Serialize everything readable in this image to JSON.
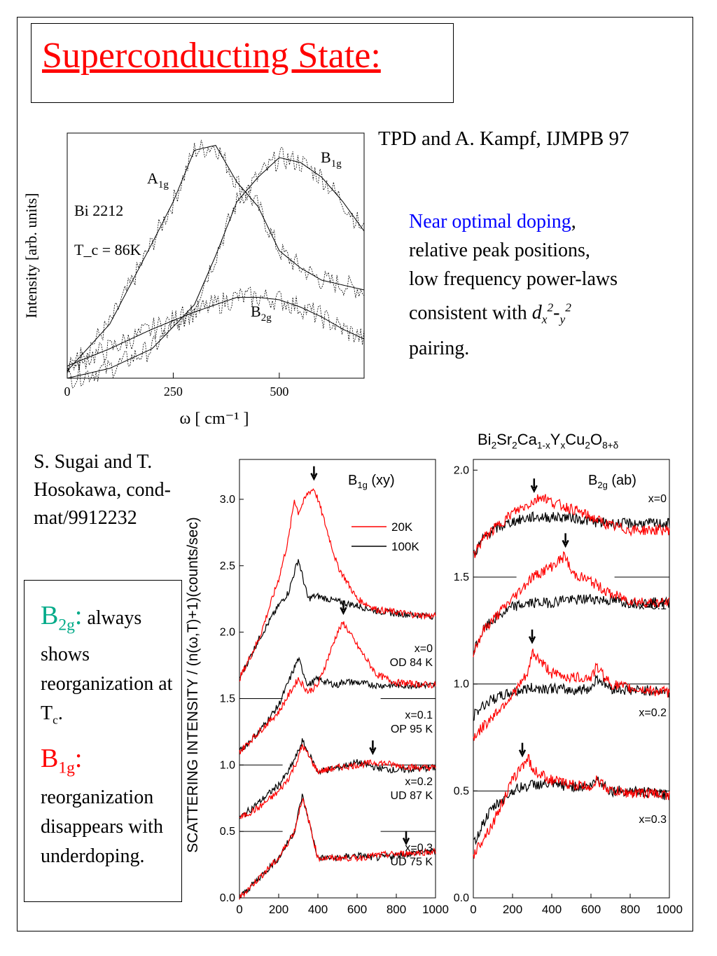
{
  "title": "Superconducting State:",
  "citation_top": "TPD and A. Kampf, IJMPB 97",
  "description": {
    "highlight": "Near optimal doping",
    "line1_rest": ",",
    "line2": "relative peak positions,",
    "line3": "low frequency power-laws",
    "line4_prefix": "consistent with ",
    "line5": "pairing."
  },
  "citation_bottom": "S. Sugai and T. Hosokawa, cond-mat/9912232",
  "notes": {
    "b2g_label": "B",
    "b2g_sub": "2g",
    "b2g_colon": ":",
    "b2g_text": " always shows reorganization at T",
    "b2g_text_sub": "c",
    "b2g_text_end": ".",
    "b1g_label": "B",
    "b1g_sub": "1g",
    "b1g_colon": ":",
    "b1g_text": "reorganization disappears with underdoping."
  },
  "colors": {
    "title": "#ff0000",
    "highlight": "#0000ff",
    "b2g": "#00aa88",
    "b1g": "#ff0000",
    "red_curve": "#ff0000",
    "black_curve": "#000000"
  },
  "chart_data": [
    {
      "type": "line",
      "ylabel": "Intensity [arb. units]",
      "xlabel": "ω [ cm⁻¹ ]",
      "xlim": [
        0,
        700
      ],
      "xticks": [
        "0",
        "250",
        "500"
      ],
      "annotations": [
        "Bi 2212",
        "T_c = 86K"
      ],
      "series": [
        {
          "name": "A1g",
          "x": [
            0,
            100,
            200,
            250,
            300,
            350,
            400,
            450,
            500,
            550,
            600,
            650,
            700
          ],
          "y": [
            0.03,
            0.22,
            0.55,
            0.72,
            0.93,
            0.95,
            0.8,
            0.7,
            0.52,
            0.45,
            0.4,
            0.38,
            0.36
          ]
        },
        {
          "name": "B1g",
          "x": [
            0,
            100,
            200,
            300,
            350,
            400,
            450,
            500,
            550,
            600,
            650,
            700
          ],
          "y": [
            0.0,
            0.04,
            0.12,
            0.3,
            0.5,
            0.72,
            0.82,
            0.9,
            0.88,
            0.82,
            0.72,
            0.6
          ]
        },
        {
          "name": "B2g",
          "x": [
            0,
            100,
            200,
            300,
            400,
            450,
            500,
            550,
            600,
            650,
            700
          ],
          "y": [
            0.05,
            0.12,
            0.2,
            0.27,
            0.33,
            0.33,
            0.32,
            0.29,
            0.25,
            0.2,
            0.16
          ]
        }
      ]
    },
    {
      "type": "line",
      "title": "B1g (xy)",
      "ylabel": "SCATTERING INTENSITY / (n(ω,T)+1)(counts/sec)",
      "xlim": [
        0,
        1000
      ],
      "ylim": [
        0,
        3.3
      ],
      "xticks": [
        "0",
        "200",
        "400",
        "600",
        "800",
        "1000"
      ],
      "yticks": [
        "0.0",
        "0.5",
        "1.0",
        "1.5",
        "2.0",
        "2.5",
        "3.0"
      ],
      "legend": [
        "20K",
        "100K"
      ],
      "legend_position": "top-right",
      "panels": [
        {
          "label1": "x=0",
          "label2": "OD 84 K",
          "offset": 1.5,
          "x": [
            0,
            100,
            200,
            250,
            280,
            300,
            350,
            380,
            400,
            450,
            500,
            600,
            700,
            800,
            900,
            1000
          ],
          "red": [
            1.65,
            1.95,
            2.4,
            2.7,
            3.0,
            2.9,
            3.05,
            3.08,
            3.0,
            2.75,
            2.5,
            2.25,
            2.17,
            2.15,
            2.13,
            2.12
          ],
          "black": [
            1.65,
            1.95,
            2.2,
            2.3,
            2.45,
            2.55,
            2.25,
            2.27,
            2.27,
            2.25,
            2.23,
            2.2,
            2.16,
            2.14,
            2.13,
            2.12
          ]
        },
        {
          "label1": "x=0.1",
          "label2": "OP 95 K",
          "offset": 1.0,
          "x": [
            0,
            100,
            200,
            300,
            350,
            400,
            450,
            500,
            530,
            600,
            700,
            800,
            900,
            1000
          ],
          "red": [
            1.1,
            1.25,
            1.4,
            1.65,
            1.55,
            1.6,
            1.8,
            2.0,
            2.07,
            1.9,
            1.68,
            1.62,
            1.61,
            1.6
          ],
          "black": [
            1.1,
            1.25,
            1.45,
            1.8,
            1.6,
            1.65,
            1.62,
            1.6,
            1.63,
            1.62,
            1.6,
            1.6,
            1.6,
            1.6
          ]
        },
        {
          "label1": "x=0.2",
          "label2": "UD 87 K",
          "offset": 0.5,
          "x": [
            0,
            100,
            200,
            250,
            300,
            320,
            400,
            500,
            600,
            700,
            800,
            900,
            1000
          ],
          "red": [
            0.6,
            0.68,
            0.8,
            0.9,
            1.05,
            1.15,
            0.95,
            0.98,
            1.0,
            1.02,
            1.0,
            0.98,
            0.98
          ],
          "black": [
            0.6,
            0.72,
            0.85,
            0.95,
            1.1,
            1.18,
            0.95,
            0.98,
            1.02,
            0.98,
            0.96,
            0.97,
            0.98
          ]
        },
        {
          "label1": "x=0.3",
          "label2": "UD 75 K",
          "offset": 0.0,
          "x": [
            0,
            100,
            200,
            280,
            320,
            350,
            400,
            500,
            600,
            700,
            800,
            900,
            1000
          ],
          "red": [
            0.0,
            0.15,
            0.3,
            0.5,
            0.75,
            0.6,
            0.3,
            0.3,
            0.3,
            0.32,
            0.33,
            0.34,
            0.35
          ],
          "black": [
            0.0,
            0.15,
            0.3,
            0.5,
            0.77,
            0.6,
            0.3,
            0.3,
            0.32,
            0.3,
            0.32,
            0.34,
            0.35
          ]
        }
      ],
      "arrows_x": [
        380,
        530,
        680,
        850
      ]
    },
    {
      "type": "line",
      "title": "B2g (ab)",
      "xlim": [
        0,
        1000
      ],
      "ylim": [
        0,
        2.05
      ],
      "xticks": [
        "0",
        "200",
        "400",
        "600",
        "800",
        "1000"
      ],
      "yticks": [
        "0.0",
        "0.5",
        "1.0",
        "1.5",
        "2.0"
      ],
      "panels": [
        {
          "label1": "x=0",
          "offset": 1.5,
          "x": [
            0,
            50,
            100,
            200,
            300,
            350,
            400,
            500,
            600,
            700,
            800,
            900,
            1000
          ],
          "red": [
            1.6,
            1.68,
            1.72,
            1.8,
            1.85,
            1.88,
            1.85,
            1.82,
            1.78,
            1.74,
            1.72,
            1.72,
            1.72
          ],
          "black": [
            1.6,
            1.68,
            1.72,
            1.76,
            1.78,
            1.78,
            1.78,
            1.78,
            1.76,
            1.75,
            1.75,
            1.75,
            1.75
          ]
        },
        {
          "label1": "x=0.1",
          "offset": 1.0,
          "x": [
            0,
            50,
            100,
            200,
            300,
            400,
            470,
            500,
            600,
            700,
            800,
            900,
            1000
          ],
          "red": [
            1.15,
            1.25,
            1.3,
            1.4,
            1.5,
            1.55,
            1.6,
            1.52,
            1.48,
            1.42,
            1.39,
            1.38,
            1.38
          ],
          "black": [
            1.15,
            1.25,
            1.3,
            1.36,
            1.38,
            1.38,
            1.4,
            1.39,
            1.4,
            1.39,
            1.38,
            1.38,
            1.38
          ]
        },
        {
          "label1": "x=0.2",
          "offset": 0.5,
          "x": [
            0,
            50,
            100,
            200,
            280,
            300,
            400,
            500,
            600,
            630,
            700,
            800,
            900,
            1000
          ],
          "red": [
            0.75,
            0.8,
            0.85,
            0.95,
            1.05,
            1.15,
            1.05,
            1.03,
            1.03,
            1.08,
            1.0,
            0.98,
            0.97,
            0.96
          ],
          "black": [
            0.85,
            0.9,
            0.93,
            0.96,
            0.98,
            0.98,
            0.98,
            0.97,
            0.98,
            1.03,
            0.98,
            0.97,
            0.97,
            0.96
          ]
        },
        {
          "label1": "x=0.3",
          "offset": 0.0,
          "x": [
            0,
            50,
            100,
            200,
            250,
            280,
            300,
            400,
            500,
            600,
            630,
            700,
            800,
            900,
            1000
          ],
          "red": [
            0.2,
            0.28,
            0.35,
            0.55,
            0.62,
            0.66,
            0.6,
            0.55,
            0.53,
            0.52,
            0.55,
            0.5,
            0.49,
            0.49,
            0.48
          ],
          "black": [
            0.25,
            0.35,
            0.42,
            0.5,
            0.52,
            0.52,
            0.53,
            0.53,
            0.52,
            0.52,
            0.56,
            0.5,
            0.5,
            0.49,
            0.48
          ]
        }
      ],
      "arrows_x": [
        310,
        470,
        300,
        250
      ]
    }
  ],
  "header_compound": "Bi2Sr2Ca1-xYxCu2O8+δ"
}
